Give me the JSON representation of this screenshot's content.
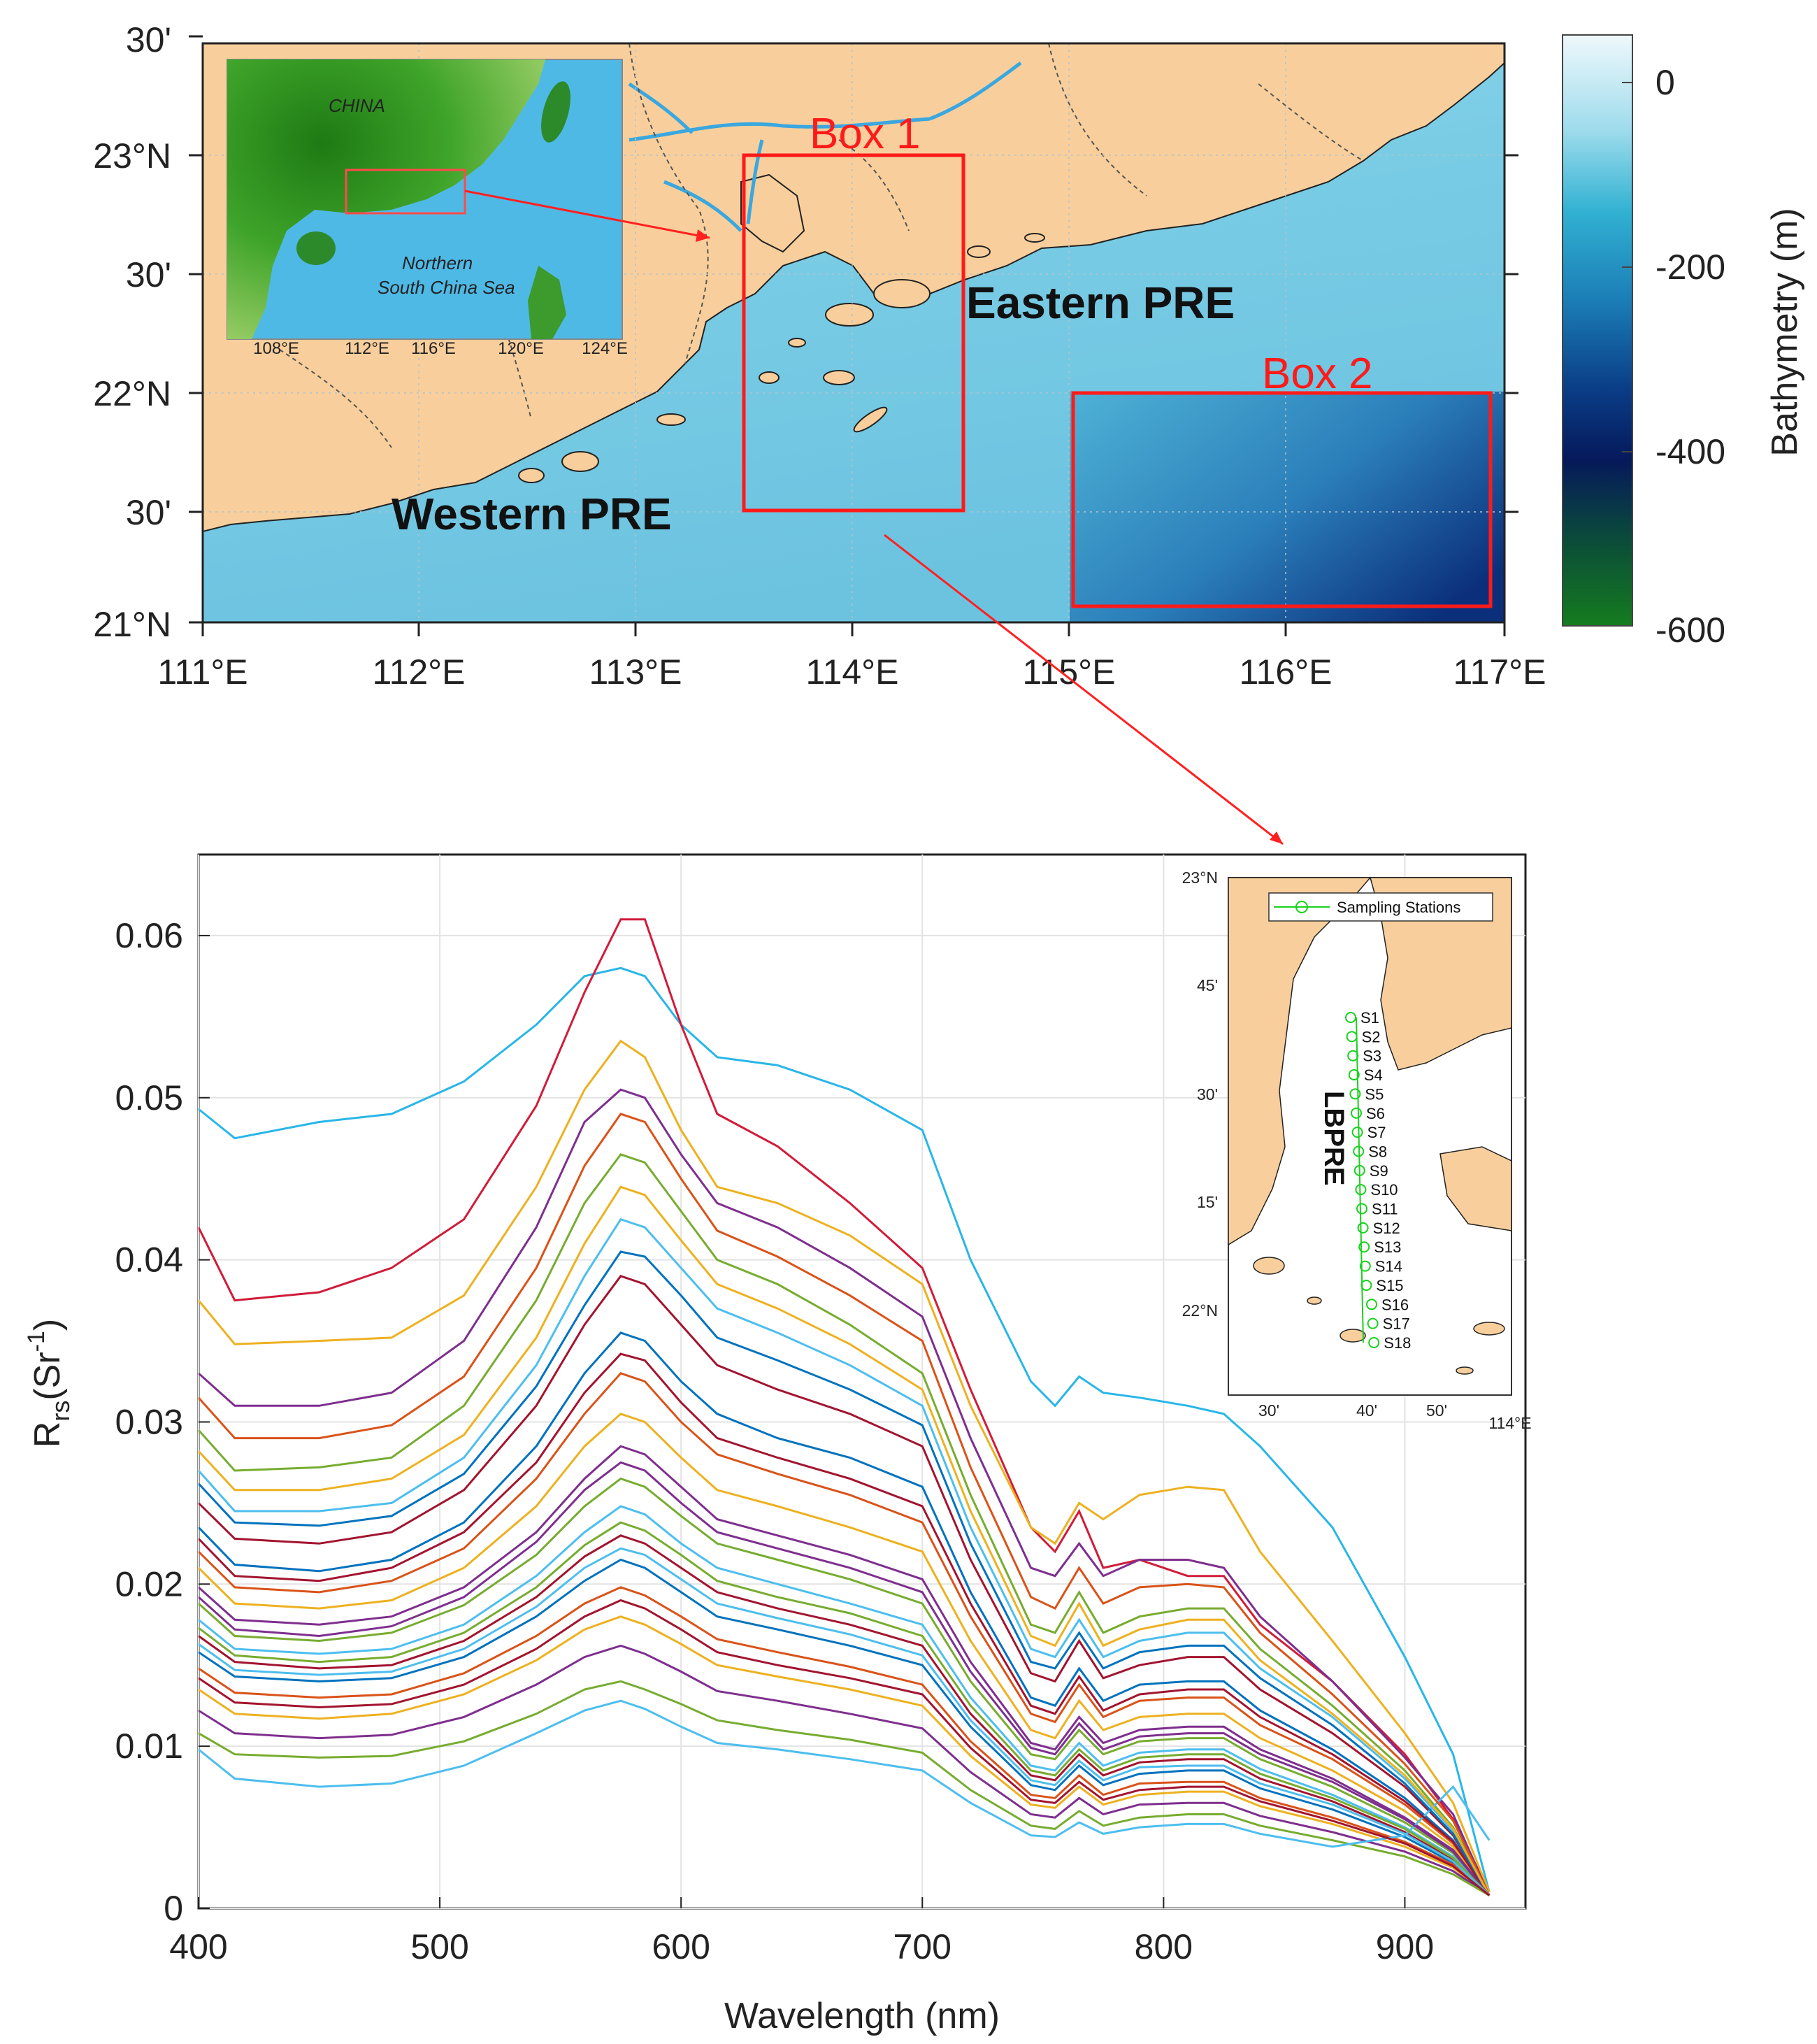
{
  "map": {
    "lat_ticks": [
      "30'",
      "23°N",
      "30'",
      "22°N",
      "30'",
      "21°N"
    ],
    "lon_ticks": [
      "111°E",
      "112°E",
      "113°E",
      "114°E",
      "115°E",
      "116°E",
      "117°E"
    ],
    "box1_label": "Box 1",
    "box2_label": "Box 2",
    "eastern_label": "Eastern PRE",
    "western_label": "Western PRE",
    "inset": {
      "china_label": "CHINA",
      "sea_label_1": "Northern",
      "sea_label_2": "South China Sea",
      "lon_ticks": [
        "108°E",
        "112°E",
        "116°E",
        "120°E",
        "124°E"
      ]
    },
    "colorbar": {
      "title": "Bathymetry (m)",
      "ticks": [
        "0",
        "-200",
        "-400",
        "-600"
      ],
      "colors": [
        "#e8f6fb",
        "#4fc1dd",
        "#1d6fae",
        "#071f63",
        "#0d6b2c"
      ]
    }
  },
  "inset2": {
    "legend": "Sampling Stations",
    "region_label": "LBPRE",
    "lat_ticks": [
      "23°N",
      "45'",
      "30'",
      "15'",
      "22°N"
    ],
    "lon_ticks": [
      "30'",
      "40'",
      "50'",
      "114°E"
    ],
    "stations": [
      "S1",
      "S2",
      "S3",
      "S4",
      "S5",
      "S6",
      "S7",
      "S8",
      "S9",
      "S10",
      "S11",
      "S12",
      "S13",
      "S14",
      "S15",
      "S16",
      "S17",
      "S18"
    ],
    "station_color": "#19d11f"
  },
  "chart_data": {
    "type": "line",
    "xlabel": "Wavelength (nm)",
    "ylabel_main": "R",
    "ylabel_sub": "rs",
    "ylabel_unit": "(Sr",
    "ylabel_exp": "-1",
    "ylabel_close": ")",
    "xlim": [
      400,
      950
    ],
    "ylim": [
      0,
      0.065
    ],
    "x_ticks": [
      400,
      500,
      600,
      700,
      800,
      900
    ],
    "y_ticks": [
      0,
      0.01,
      0.02,
      0.03,
      0.04,
      0.05,
      0.06
    ],
    "y_tick_labels": [
      "0",
      "0.01",
      "0.02",
      "0.03",
      "0.04",
      "0.05",
      "0.06"
    ],
    "x_tick_labels": [
      "400",
      "500",
      "600",
      "700",
      "800",
      "900"
    ],
    "grid": true,
    "x": [
      400,
      415,
      450,
      480,
      510,
      540,
      560,
      575,
      585,
      600,
      615,
      640,
      670,
      700,
      720,
      745,
      755,
      765,
      775,
      790,
      810,
      825,
      840,
      870,
      900,
      920,
      935
    ],
    "series": [
      {
        "values": [
          0.0493,
          0.0475,
          0.0485,
          0.049,
          0.051,
          0.0545,
          0.0575,
          0.058,
          0.0575,
          0.0545,
          0.0525,
          0.052,
          0.0505,
          0.048,
          0.04,
          0.0325,
          0.031,
          0.0328,
          0.0318,
          0.0315,
          0.031,
          0.0305,
          0.0285,
          0.0235,
          0.0155,
          0.0095,
          0.001
        ]
      },
      {
        "values": [
          0.042,
          0.0375,
          0.038,
          0.0395,
          0.0425,
          0.0495,
          0.0565,
          0.061,
          0.061,
          0.0545,
          0.049,
          0.047,
          0.0435,
          0.0395,
          0.032,
          0.0235,
          0.022,
          0.0245,
          0.021,
          0.0215,
          0.0205,
          0.0205,
          0.0175,
          0.014,
          0.0095,
          0.0055,
          0.001
        ]
      },
      {
        "values": [
          0.0375,
          0.0348,
          0.035,
          0.0352,
          0.0378,
          0.0445,
          0.0505,
          0.0535,
          0.0525,
          0.048,
          0.0445,
          0.0435,
          0.0415,
          0.0385,
          0.031,
          0.0235,
          0.0225,
          0.025,
          0.024,
          0.0255,
          0.026,
          0.0258,
          0.022,
          0.0165,
          0.0108,
          0.0065,
          0.001
        ]
      },
      {
        "values": [
          0.033,
          0.031,
          0.031,
          0.0318,
          0.035,
          0.042,
          0.0485,
          0.0505,
          0.05,
          0.0465,
          0.0435,
          0.042,
          0.0395,
          0.0365,
          0.029,
          0.021,
          0.0205,
          0.0225,
          0.0205,
          0.0215,
          0.0215,
          0.021,
          0.018,
          0.014,
          0.0093,
          0.0058,
          0.0008
        ]
      },
      {
        "values": [
          0.0295,
          0.027,
          0.0272,
          0.0278,
          0.031,
          0.0375,
          0.0435,
          0.0465,
          0.046,
          0.043,
          0.04,
          0.0385,
          0.036,
          0.033,
          0.0255,
          0.0175,
          0.017,
          0.0195,
          0.017,
          0.018,
          0.0185,
          0.0185,
          0.016,
          0.0125,
          0.0085,
          0.005,
          0.0008
        ]
      },
      {
        "values": [
          0.027,
          0.0245,
          0.0245,
          0.025,
          0.0278,
          0.0335,
          0.039,
          0.0425,
          0.042,
          0.0395,
          0.037,
          0.0355,
          0.0335,
          0.031,
          0.0235,
          0.016,
          0.0155,
          0.0178,
          0.0155,
          0.0165,
          0.017,
          0.017,
          0.0148,
          0.0118,
          0.008,
          0.0048,
          0.0008
        ]
      },
      {
        "values": [
          0.025,
          0.0228,
          0.0225,
          0.0232,
          0.0258,
          0.031,
          0.036,
          0.039,
          0.0385,
          0.036,
          0.0335,
          0.032,
          0.0305,
          0.0285,
          0.0215,
          0.0145,
          0.014,
          0.0165,
          0.0142,
          0.015,
          0.0155,
          0.0155,
          0.0135,
          0.0108,
          0.0075,
          0.0045,
          0.0008
        ]
      },
      {
        "values": [
          0.0235,
          0.0212,
          0.0208,
          0.0215,
          0.0238,
          0.0285,
          0.033,
          0.0355,
          0.035,
          0.0325,
          0.0305,
          0.029,
          0.0278,
          0.026,
          0.0195,
          0.013,
          0.0125,
          0.0148,
          0.0128,
          0.0138,
          0.014,
          0.014,
          0.0122,
          0.0098,
          0.0068,
          0.0042,
          0.0008
        ]
      },
      {
        "values": [
          0.022,
          0.0198,
          0.0195,
          0.0202,
          0.0222,
          0.0265,
          0.0305,
          0.033,
          0.0325,
          0.03,
          0.028,
          0.0268,
          0.0255,
          0.0238,
          0.018,
          0.012,
          0.0115,
          0.0138,
          0.0118,
          0.0128,
          0.013,
          0.013,
          0.0113,
          0.0092,
          0.0064,
          0.004,
          0.0008
        ]
      },
      {
        "values": [
          0.021,
          0.0188,
          0.0185,
          0.019,
          0.021,
          0.0248,
          0.0285,
          0.0305,
          0.03,
          0.0278,
          0.0258,
          0.0248,
          0.0235,
          0.022,
          0.0165,
          0.011,
          0.0105,
          0.0128,
          0.011,
          0.0118,
          0.012,
          0.012,
          0.0105,
          0.0085,
          0.006,
          0.0038,
          0.0008
        ]
      },
      {
        "values": [
          0.0198,
          0.0178,
          0.0175,
          0.018,
          0.0198,
          0.0232,
          0.0265,
          0.0285,
          0.028,
          0.026,
          0.024,
          0.023,
          0.0218,
          0.0203,
          0.0152,
          0.0102,
          0.0098,
          0.0118,
          0.0102,
          0.011,
          0.0112,
          0.0112,
          0.0098,
          0.008,
          0.0056,
          0.0036,
          0.0008
        ]
      },
      {
        "values": [
          0.0188,
          0.0168,
          0.0165,
          0.017,
          0.0187,
          0.0218,
          0.0248,
          0.0265,
          0.026,
          0.0242,
          0.0225,
          0.0215,
          0.0203,
          0.0188,
          0.014,
          0.0095,
          0.0092,
          0.011,
          0.0095,
          0.0103,
          0.0105,
          0.0105,
          0.0092,
          0.0075,
          0.0053,
          0.0034,
          0.0008
        ]
      },
      {
        "values": [
          0.0178,
          0.016,
          0.0157,
          0.016,
          0.0175,
          0.0205,
          0.0232,
          0.0248,
          0.0243,
          0.0225,
          0.021,
          0.02,
          0.0188,
          0.0175,
          0.013,
          0.0088,
          0.0085,
          0.0102,
          0.0088,
          0.0096,
          0.0098,
          0.0098,
          0.0086,
          0.007,
          0.005,
          0.0032,
          0.0008
        ]
      },
      {
        "values": [
          0.0168,
          0.0152,
          0.0148,
          0.015,
          0.0165,
          0.0192,
          0.0217,
          0.023,
          0.0225,
          0.021,
          0.0195,
          0.0185,
          0.0175,
          0.0162,
          0.012,
          0.0082,
          0.0079,
          0.0095,
          0.0082,
          0.009,
          0.0092,
          0.0092,
          0.008,
          0.0066,
          0.0047,
          0.003,
          0.0008
        ]
      },
      {
        "values": [
          0.0158,
          0.0143,
          0.014,
          0.0142,
          0.0155,
          0.018,
          0.0202,
          0.0215,
          0.021,
          0.0195,
          0.018,
          0.0172,
          0.0162,
          0.015,
          0.0112,
          0.0076,
          0.0073,
          0.0088,
          0.0076,
          0.0083,
          0.0085,
          0.0085,
          0.0074,
          0.0061,
          0.0044,
          0.0028,
          0.0008
        ]
      },
      {
        "values": [
          0.0148,
          0.0133,
          0.013,
          0.0132,
          0.0145,
          0.0168,
          0.0188,
          0.0198,
          0.0193,
          0.018,
          0.0166,
          0.0158,
          0.0149,
          0.0138,
          0.0103,
          0.007,
          0.0068,
          0.0082,
          0.007,
          0.0077,
          0.0078,
          0.0078,
          0.0068,
          0.0056,
          0.0041,
          0.0027,
          0.0008
        ]
      },
      {
        "values": [
          0.0135,
          0.012,
          0.0117,
          0.012,
          0.0132,
          0.0153,
          0.0172,
          0.018,
          0.0175,
          0.0163,
          0.015,
          0.0143,
          0.0135,
          0.0125,
          0.0094,
          0.0064,
          0.0062,
          0.0075,
          0.0064,
          0.007,
          0.0072,
          0.0072,
          0.0063,
          0.0052,
          0.0038,
          0.0025,
          0.0008
        ]
      },
      {
        "values": [
          0.0122,
          0.0108,
          0.0105,
          0.0107,
          0.0118,
          0.0138,
          0.0155,
          0.0162,
          0.0157,
          0.0146,
          0.0134,
          0.0128,
          0.012,
          0.0111,
          0.0084,
          0.0058,
          0.0056,
          0.0068,
          0.0058,
          0.0064,
          0.0065,
          0.0065,
          0.0057,
          0.0047,
          0.0035,
          0.0023,
          0.0008
        ]
      },
      {
        "values": [
          0.0108,
          0.0095,
          0.0093,
          0.0094,
          0.0103,
          0.012,
          0.0135,
          0.014,
          0.0135,
          0.0126,
          0.0116,
          0.011,
          0.0104,
          0.0096,
          0.0073,
          0.0051,
          0.0049,
          0.006,
          0.0051,
          0.0056,
          0.0058,
          0.0058,
          0.0051,
          0.0042,
          0.0032,
          0.0021,
          0.0008
        ]
      },
      {
        "values": [
          0.0098,
          0.008,
          0.0075,
          0.0077,
          0.0088,
          0.0108,
          0.0122,
          0.0128,
          0.0123,
          0.0112,
          0.0102,
          0.0098,
          0.0092,
          0.0085,
          0.0065,
          0.0045,
          0.0044,
          0.0053,
          0.0046,
          0.005,
          0.0052,
          0.0052,
          0.0046,
          0.0038,
          0.0045,
          0.0075,
          0.0042
        ]
      },
      {
        "values": [
          0.0228,
          0.0205,
          0.0202,
          0.021,
          0.0232,
          0.0275,
          0.0318,
          0.0342,
          0.0338,
          0.0312,
          0.029,
          0.0278,
          0.0265,
          0.0248,
          0.0188,
          0.0125,
          0.012,
          0.0143,
          0.0122,
          0.0132,
          0.0135,
          0.0135,
          0.0118,
          0.0095,
          0.0066,
          0.0041,
          0.0008
        ]
      },
      {
        "values": [
          0.0262,
          0.0238,
          0.0236,
          0.0242,
          0.0268,
          0.0322,
          0.0372,
          0.0405,
          0.0402,
          0.0378,
          0.0352,
          0.0338,
          0.032,
          0.0298,
          0.0225,
          0.0152,
          0.0148,
          0.017,
          0.0148,
          0.0158,
          0.0162,
          0.0162,
          0.0142,
          0.0113,
          0.0077,
          0.0046,
          0.0008
        ]
      },
      {
        "values": [
          0.0315,
          0.029,
          0.029,
          0.0298,
          0.0328,
          0.0395,
          0.0458,
          0.049,
          0.0485,
          0.045,
          0.0418,
          0.0402,
          0.0378,
          0.035,
          0.0272,
          0.0192,
          0.0185,
          0.021,
          0.0188,
          0.0198,
          0.02,
          0.0198,
          0.017,
          0.0132,
          0.0089,
          0.0054,
          0.0008
        ]
      },
      {
        "values": [
          0.0282,
          0.0258,
          0.0258,
          0.0265,
          0.0292,
          0.0352,
          0.041,
          0.0445,
          0.044,
          0.0412,
          0.0385,
          0.037,
          0.0348,
          0.032,
          0.0245,
          0.0168,
          0.0162,
          0.0188,
          0.0162,
          0.0172,
          0.0178,
          0.0178,
          0.0153,
          0.012,
          0.0082,
          0.0049,
          0.0008
        ]
      },
      {
        "values": [
          0.0192,
          0.0172,
          0.0168,
          0.0174,
          0.0192,
          0.0226,
          0.0258,
          0.0275,
          0.027,
          0.025,
          0.0232,
          0.0222,
          0.021,
          0.0195,
          0.0146,
          0.0099,
          0.0095,
          0.0114,
          0.0098,
          0.0106,
          0.0108,
          0.0108,
          0.0095,
          0.0078,
          0.0055,
          0.0035,
          0.0008
        ]
      },
      {
        "values": [
          0.0173,
          0.0156,
          0.0152,
          0.0155,
          0.017,
          0.0198,
          0.0224,
          0.0238,
          0.0233,
          0.0218,
          0.0202,
          0.0192,
          0.0182,
          0.0168,
          0.0125,
          0.0085,
          0.0082,
          0.0098,
          0.0085,
          0.0093,
          0.0095,
          0.0095,
          0.0083,
          0.0068,
          0.0049,
          0.0031,
          0.0008
        ]
      },
      {
        "values": [
          0.0163,
          0.0147,
          0.0144,
          0.0146,
          0.016,
          0.0186,
          0.021,
          0.0222,
          0.0218,
          0.0203,
          0.0188,
          0.0179,
          0.0169,
          0.0156,
          0.0116,
          0.0079,
          0.0076,
          0.0091,
          0.0079,
          0.0087,
          0.0088,
          0.0088,
          0.0077,
          0.0064,
          0.0046,
          0.0029,
          0.0008
        ]
      },
      {
        "values": [
          0.0142,
          0.0127,
          0.0124,
          0.0126,
          0.0138,
          0.016,
          0.018,
          0.019,
          0.0185,
          0.0172,
          0.0158,
          0.015,
          0.0142,
          0.0132,
          0.0099,
          0.0067,
          0.0065,
          0.0078,
          0.0067,
          0.0073,
          0.0075,
          0.0075,
          0.0066,
          0.0054,
          0.004,
          0.0026,
          0.0008
        ]
      }
    ]
  }
}
